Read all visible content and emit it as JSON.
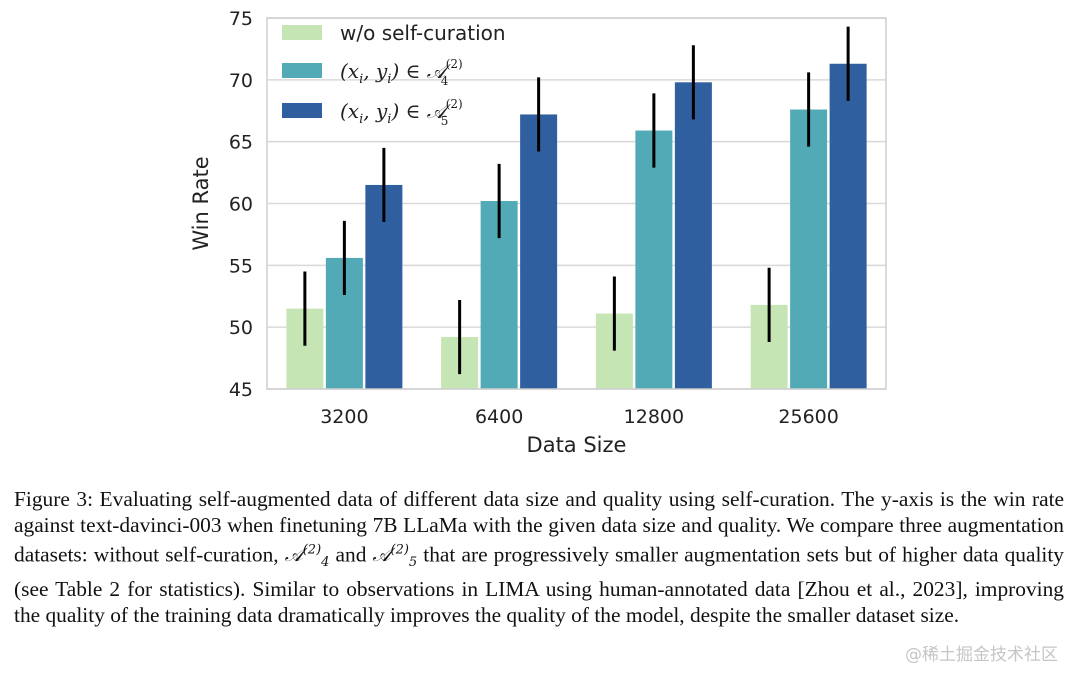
{
  "chart_data": {
    "type": "bar",
    "categories": [
      "3200",
      "6400",
      "12800",
      "25600"
    ],
    "series": [
      {
        "name": "w/o self-curation",
        "color": "#c6e5b4",
        "values": [
          51.5,
          49.2,
          51.1,
          51.8
        ],
        "errors": [
          3.0,
          3.0,
          3.0,
          3.0
        ]
      },
      {
        "name": "(x_i, y_i) ∈ A_4^(2)",
        "color": "#52aab7",
        "values": [
          55.6,
          60.2,
          65.9,
          67.6
        ],
        "errors": [
          3.0,
          3.0,
          3.0,
          3.0
        ]
      },
      {
        "name": "(x_i, y_i) ∈ A_5^(2)",
        "color": "#2f5f9e",
        "values": [
          61.5,
          67.2,
          69.8,
          71.3
        ],
        "errors": [
          3.0,
          3.0,
          3.0,
          3.0
        ]
      }
    ],
    "xlabel": "Data Size",
    "ylabel": "Win Rate",
    "ylim": [
      45,
      75
    ],
    "yticks": [
      45,
      50,
      55,
      60,
      65,
      70,
      75
    ],
    "grid": true,
    "legend_position": "top-left"
  },
  "legend": {
    "item1": "w/o self-curation",
    "item2_prefix": "(x",
    "item2_sub_i": "i",
    "item2_mid": ", y",
    "item2_sub_i2": "i",
    "item2_rel": ") ∈ 𝒜",
    "item2_sup": "(2)",
    "item2_sub": "4",
    "item3_prefix": "(x",
    "item3_sub_i": "i",
    "item3_mid": ", y",
    "item3_sub_i2": "i",
    "item3_rel": ") ∈ 𝒜",
    "item3_sup": "(2)",
    "item3_sub": "5"
  },
  "caption": {
    "part1": "Figure 3: Evaluating self-augmented data of different data size and quality using self-curation. The y-axis is the win rate against text-davinci-003 when finetuning 7B LLaMa with the given data size and quality. We compare three augmentation datasets: without self-curation, ",
    "a4_base": "𝒜",
    "a4_sup": "(2)",
    "a4_sub": "4",
    "part2": " and ",
    "a5_base": "𝒜",
    "a5_sup": "(2)",
    "a5_sub": "5",
    "part3": " that are progressively smaller augmentation sets but of higher data quality (see Table 2 for statistics). Similar to observations in LIMA using human-annotated data [Zhou et al., 2023], improving the quality of the training data dramatically improves the quality of the model, despite the smaller dataset size."
  },
  "watermark": "@稀土掘金技术社区"
}
